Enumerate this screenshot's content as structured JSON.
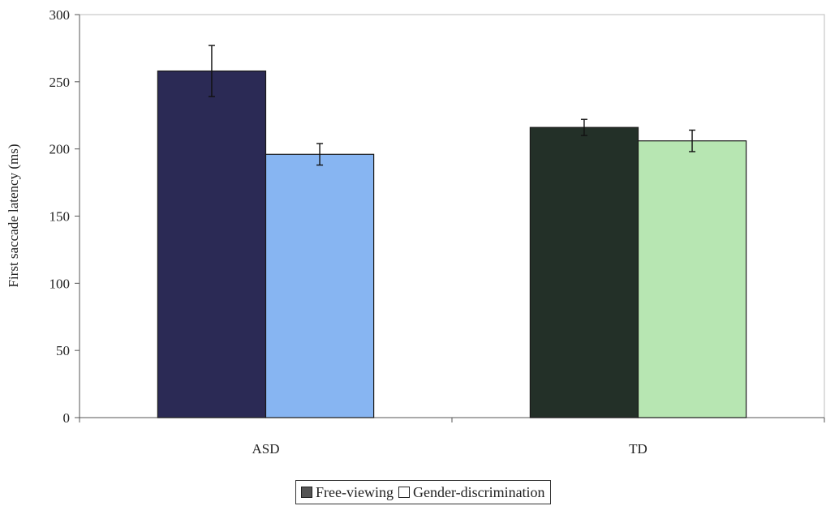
{
  "chart_data": {
    "type": "bar",
    "categories": [
      "ASD",
      "TD"
    ],
    "series": [
      {
        "name": "Free-viewing",
        "values": [
          258,
          216
        ],
        "errors": [
          19,
          6
        ],
        "colors": [
          "#2b2a55",
          "#233028"
        ]
      },
      {
        "name": "Gender-discrimination",
        "values": [
          196,
          206
        ],
        "errors": [
          8,
          8
        ],
        "colors": [
          "#87b5f2",
          "#b7e6b2"
        ]
      }
    ],
    "ylabel": "First saccade latency (ms)",
    "xlabel": "",
    "ylim": [
      0,
      300
    ],
    "yticks": [
      0,
      50,
      100,
      150,
      200,
      250,
      300
    ],
    "grid": false,
    "legend": "bottom"
  },
  "legend_swatches": [
    "#555555",
    "#ffffff"
  ]
}
